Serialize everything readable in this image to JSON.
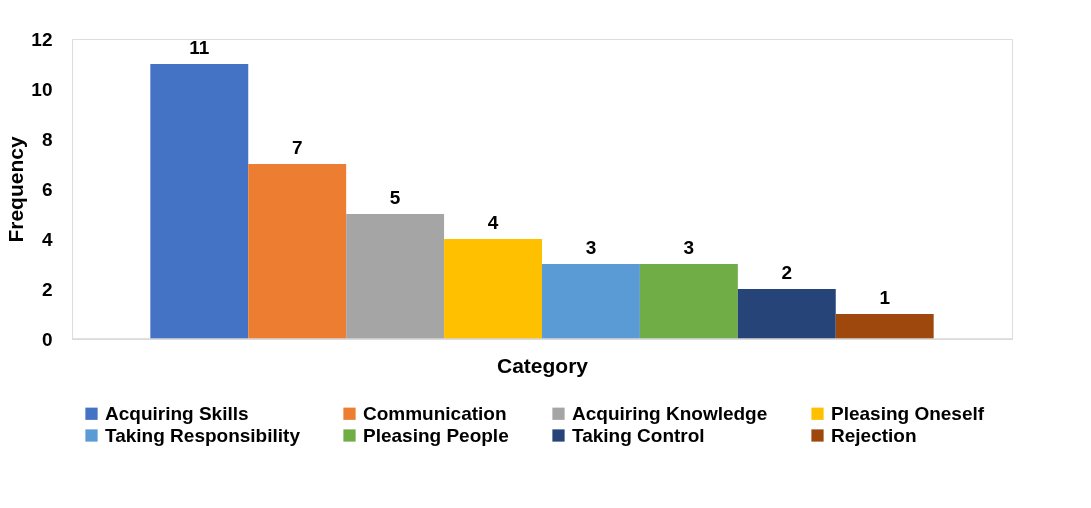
{
  "chart_data": {
    "type": "bar",
    "xlabel": "Category",
    "ylabel": "Frequency",
    "categories": [
      null
    ],
    "ylim": [
      0,
      12
    ],
    "yticks": [
      0,
      2,
      4,
      6,
      8,
      10,
      12
    ],
    "data_labels": true,
    "legend": "bottom",
    "grid": false,
    "series": [
      {
        "name": "Acquiring Skills",
        "color": "#4472c4",
        "values": [
          11
        ]
      },
      {
        "name": "Communication",
        "color": "#ed7d31",
        "values": [
          7
        ]
      },
      {
        "name": "Acquiring Knowledge",
        "color": "#a5a5a5",
        "values": [
          5
        ]
      },
      {
        "name": "Pleasing Oneself",
        "color": "#ffc000",
        "values": [
          4
        ]
      },
      {
        "name": "Taking Responsibility",
        "color": "#5b9bd5",
        "values": [
          3
        ]
      },
      {
        "name": "Pleasing People",
        "color": "#70ad47",
        "values": [
          3
        ]
      },
      {
        "name": "Taking Control",
        "color": "#264478",
        "values": [
          2
        ]
      },
      {
        "name": "Rejection",
        "color": "#9e480e",
        "values": [
          1
        ]
      }
    ]
  }
}
